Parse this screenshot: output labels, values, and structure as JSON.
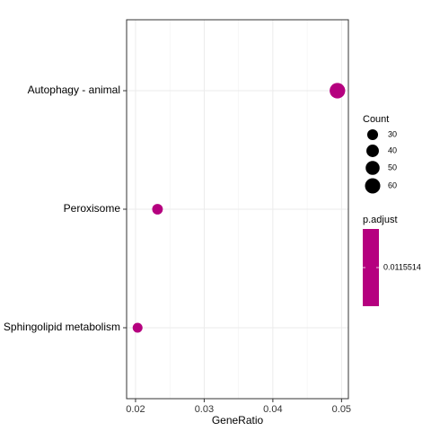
{
  "chart_data": {
    "type": "scatter",
    "title": "",
    "xlabel": "GeneRatio",
    "ylabel": "",
    "xlim": [
      0.0187,
      0.051
    ],
    "xticks": [
      "0.02",
      "0.03",
      "0.04",
      "0.05"
    ],
    "xtick_values": [
      0.02,
      0.03,
      0.04,
      0.05
    ],
    "categories": [
      "Autophagy - animal",
      "Peroxisome",
      "Sphingolipid metabolism"
    ],
    "points": [
      {
        "term": "Autophagy - animal",
        "gene_ratio": 0.0494,
        "count": 62,
        "p_adjust": 0.0115514
      },
      {
        "term": "Peroxisome",
        "gene_ratio": 0.0232,
        "count": 29,
        "p_adjust": 0.0115514
      },
      {
        "term": "Sphingolipid metabolism",
        "gene_ratio": 0.0203,
        "count": 25,
        "p_adjust": 0.0115514
      }
    ],
    "grid": true,
    "point_color": "#b5007f",
    "legend": {
      "placement": "right",
      "size_title": "Count",
      "size_labels": [
        "30",
        "40",
        "50",
        "60"
      ],
      "size_values": [
        30,
        40,
        50,
        60
      ],
      "color_title": "p.adjust",
      "color_label": "0.0115514",
      "color_value": 0.0115514
    }
  }
}
